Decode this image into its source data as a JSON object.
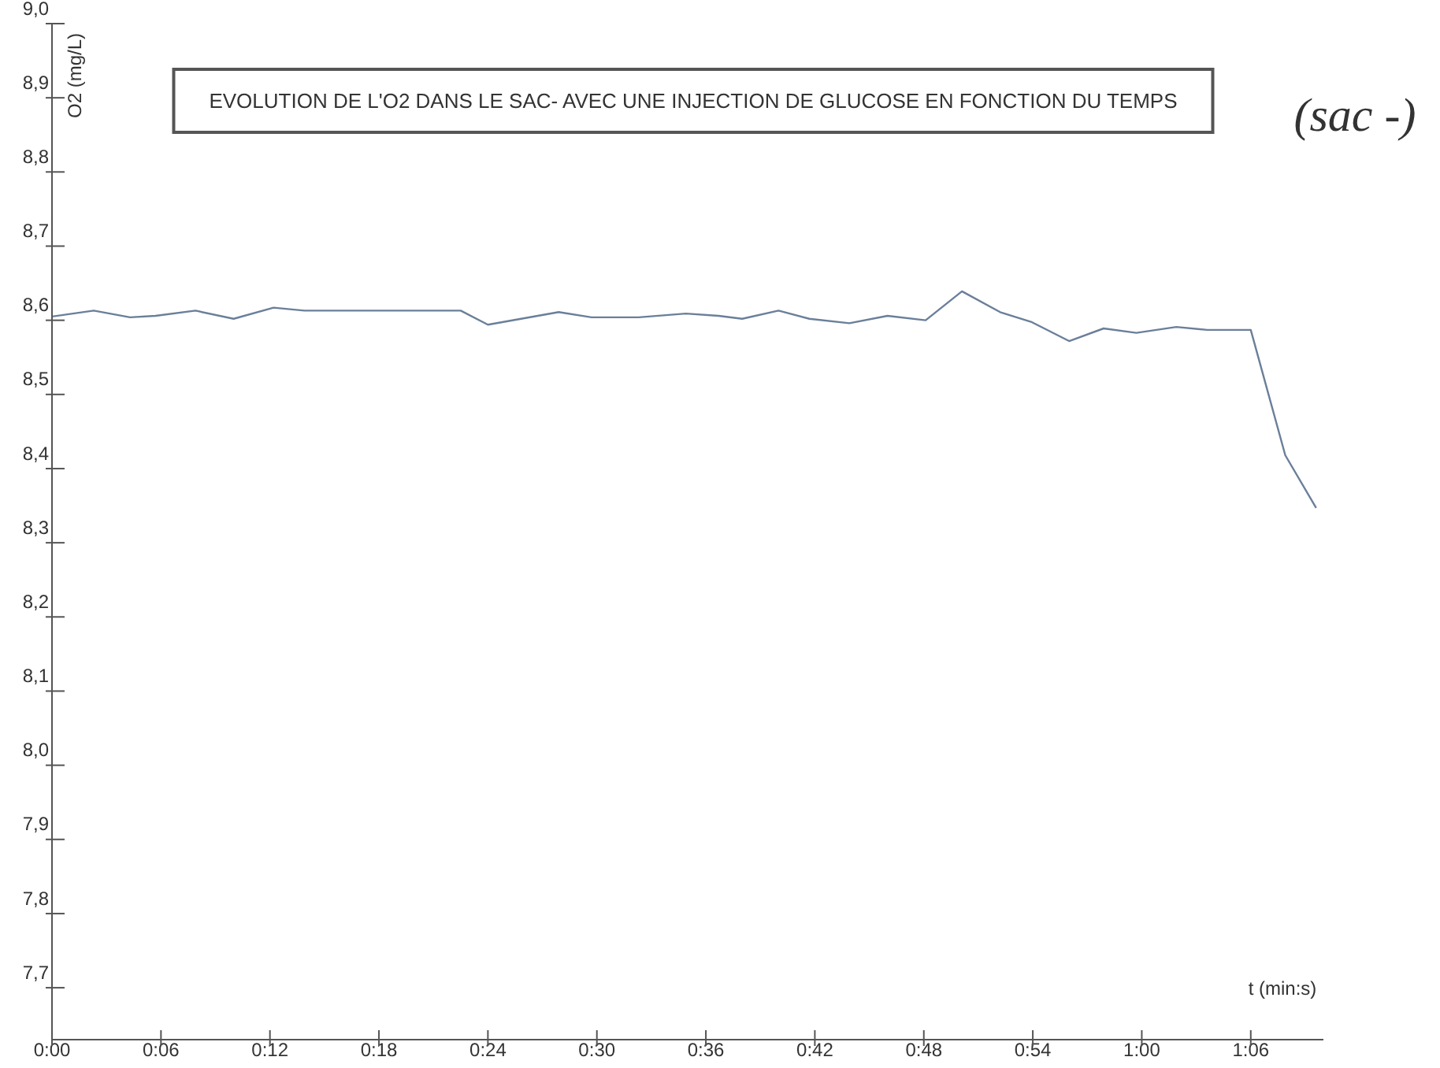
{
  "chart_data": {
    "type": "line",
    "title": "EVOLUTION DE L'O2 DANS LE SAC- AVEC UNE INJECTION DE GLUCOSE EN FONCTION DU TEMPS",
    "xlabel": "t (min:s)",
    "ylabel": "O2 (mg/L)",
    "annotations": [
      "(sac -)"
    ],
    "x": [
      0,
      2.3,
      4.3,
      5.7,
      7.9,
      10.0,
      12.2,
      13.9,
      22.5,
      24.0,
      27.9,
      29.7,
      32.3,
      34.9,
      36.7,
      38.0,
      40.0,
      41.7,
      43.9,
      46.0,
      48.1,
      50.1,
      52.2,
      53.9,
      56.0,
      57.9,
      59.7,
      61.9,
      63.6,
      66.0,
      67.9,
      69.6
    ],
    "series": [
      {
        "color": "#6a7f9a",
        "values": [
          8.605,
          8.613,
          8.604,
          8.606,
          8.613,
          8.602,
          8.617,
          8.613,
          8.613,
          8.594,
          8.611,
          8.604,
          8.604,
          8.609,
          8.606,
          8.602,
          8.613,
          8.602,
          8.596,
          8.606,
          8.6,
          8.639,
          8.611,
          8.598,
          8.572,
          8.589,
          8.583,
          8.591,
          8.587,
          8.587,
          8.418,
          8.347
        ]
      }
    ],
    "xlim": [
      0,
      70
    ],
    "xticks": [
      {
        "value": 0,
        "label": "0:00"
      },
      {
        "value": 6,
        "label": "0:06"
      },
      {
        "value": 12,
        "label": "0:12"
      },
      {
        "value": 18,
        "label": "0:18"
      },
      {
        "value": 24,
        "label": "0:24"
      },
      {
        "value": 30,
        "label": "0:30"
      },
      {
        "value": 36,
        "label": "0:36"
      },
      {
        "value": 42,
        "label": "0:42"
      },
      {
        "value": 48,
        "label": "0:48"
      },
      {
        "value": 54,
        "label": "0:54"
      },
      {
        "value": 60,
        "label": "1:00"
      },
      {
        "value": 66,
        "label": "1:06"
      }
    ],
    "ylim": [
      7.63,
      9.0
    ],
    "yticks": [
      {
        "value": 7.7,
        "label": "7,7"
      },
      {
        "value": 7.8,
        "label": "7,8"
      },
      {
        "value": 7.9,
        "label": "7,9"
      },
      {
        "value": 8.0,
        "label": "8,0"
      },
      {
        "value": 8.1,
        "label": "8,1"
      },
      {
        "value": 8.2,
        "label": "8,2"
      },
      {
        "value": 8.3,
        "label": "8,3"
      },
      {
        "value": 8.4,
        "label": "8,4"
      },
      {
        "value": 8.5,
        "label": "8,5"
      },
      {
        "value": 8.6,
        "label": "8,6"
      },
      {
        "value": 8.7,
        "label": "8,7"
      },
      {
        "value": 8.8,
        "label": "8,8"
      },
      {
        "value": 8.9,
        "label": "8,9"
      },
      {
        "value": 9.0,
        "label": "9,0"
      }
    ],
    "grid": false,
    "legend": false,
    "marker": "none",
    "line_style": "solid"
  }
}
